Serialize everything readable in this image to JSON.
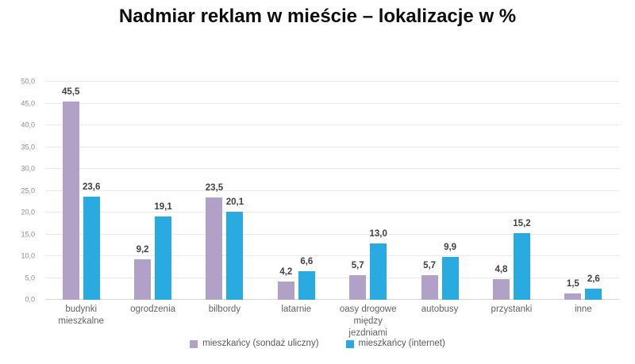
{
  "chart_data": {
    "type": "bar",
    "title": "Nadmiar reklam w mieście – lokalizacje w %",
    "categories": [
      "budynki mieszkalne",
      "ogrodzenia",
      "bilbordy",
      "latarnie",
      "oasy drogowe między jezdniami",
      "autobusy",
      "przystanki",
      "inne"
    ],
    "series": [
      {
        "name": "mieszkańcy (sondaż uliczny)",
        "color": "#b2a1c7",
        "values": [
          45.5,
          9.2,
          23.5,
          4.2,
          5.7,
          5.7,
          4.8,
          1.5
        ]
      },
      {
        "name": "mieszkańcy (internet)",
        "color": "#29abe2",
        "values": [
          23.6,
          19.1,
          20.1,
          6.6,
          13.0,
          9.9,
          15.2,
          2.6
        ]
      }
    ],
    "value_labels": [
      [
        "45,5",
        "9,2",
        "23,5",
        "4,2",
        "5,7",
        "5,7",
        "4,8",
        "1,5"
      ],
      [
        "23,6",
        "19,1",
        "20,1",
        "6,6",
        "13,0",
        "9,9",
        "15,2",
        "2,6"
      ]
    ],
    "ylim": [
      0,
      50
    ],
    "ytick_step": 5,
    "ytick_labels": [
      "0,0",
      "5,0",
      "10,0",
      "15,0",
      "20,0",
      "25,0",
      "30,0",
      "35,0",
      "40,0",
      "45,0",
      "50,0"
    ],
    "grid": true,
    "legend_position": "bottom",
    "colors": {
      "grid": "#e8e8e8",
      "baseline": "#d4d4d4",
      "value_label": "#404040",
      "tick_label": "#8c8c8c",
      "category_label": "#636363",
      "legend_text": "#595959",
      "title": "#0d0d0d"
    }
  }
}
